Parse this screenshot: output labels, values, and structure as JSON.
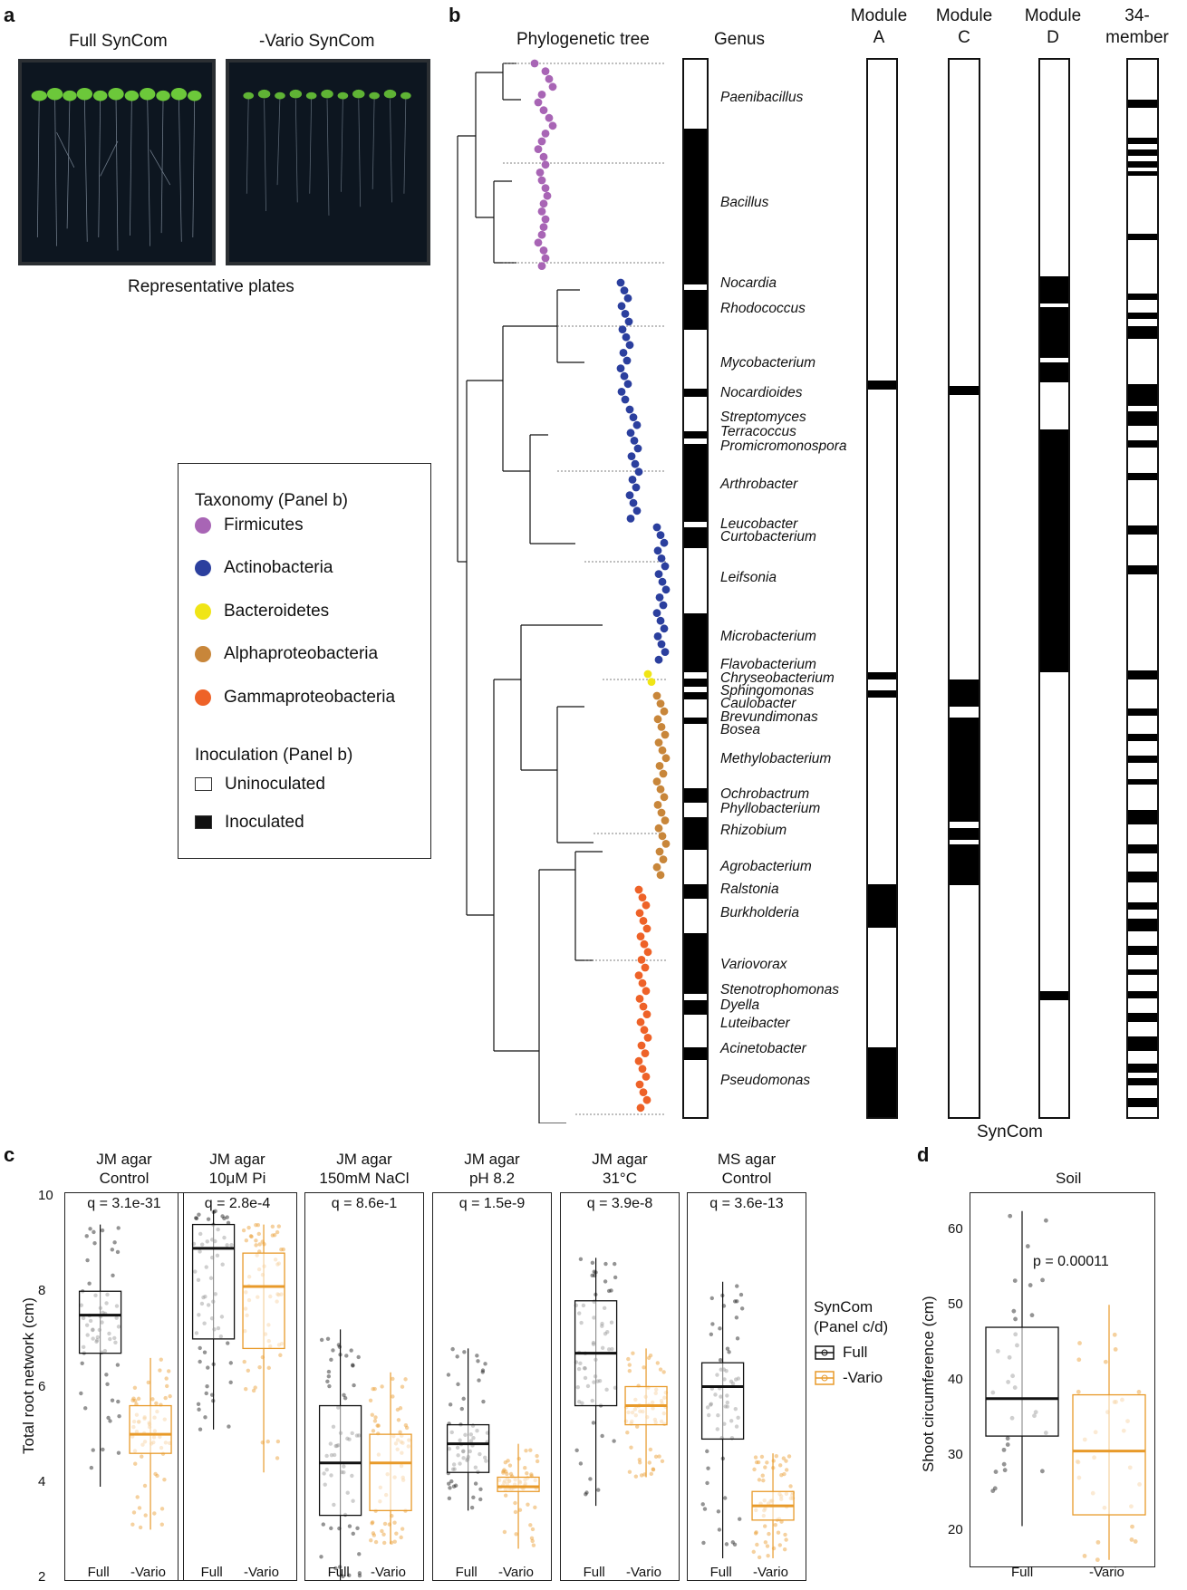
{
  "panel_a": {
    "letter": "a",
    "plate_titles": [
      "Full SynCom",
      "-Vario SynCom"
    ],
    "caption": "Representative plates"
  },
  "panel_b": {
    "letter": "b",
    "tree_title": "Phylogenetic tree",
    "genus_title": "Genus",
    "module_headers": [
      {
        "line1": "Module",
        "line2": "A"
      },
      {
        "line1": "Module",
        "line2": "C"
      },
      {
        "line1": "Module",
        "line2": "D"
      },
      {
        "line1": "34-",
        "line2": "member"
      }
    ],
    "bottom_label": "SynCom",
    "genera": [
      "Paenibacillus",
      "Bacillus",
      "Nocardia",
      "Rhodococcus",
      "Mycobacterium",
      "Nocardioides",
      "Streptomyces",
      "Terracoccus",
      "Promicromonospora",
      "Arthrobacter",
      "Leucobacter",
      "Curtobacterium",
      "Leifsonia",
      "Microbacterium",
      "Flavobacterium",
      "Chryseobacterium",
      "Sphingomonas",
      "Caulobacter",
      "Brevundimonas",
      "Bosea",
      "Methylobacterium",
      "Ochrobactrum",
      "Phyllobacterium",
      "Rhizobium",
      "Agrobacterium",
      "Ralstonia",
      "Burkholderia",
      "Variovorax",
      "Stenotrophomonas",
      "Dyella",
      "Luteibacter",
      "Acinetobacter",
      "Pseudomonas"
    ],
    "colors": {
      "Firmicutes": "#a865b5",
      "Actinobacteria": "#2b3f9e",
      "Bacteroidetes": "#f0e516",
      "Alphaproteobacteria": "#c8863a",
      "Gammaproteobacteria": "#ee6228"
    }
  },
  "legend": {
    "taxonomy_title": "Taxonomy  (Panel b)",
    "taxa": [
      "Firmicutes",
      "Actinobacteria",
      "Bacteroidetes",
      "Alphaproteobacteria",
      "Gammaproteobacteria"
    ],
    "inoculation_title": "Inoculation (Panel b)",
    "uninoculated": "Uninoculated",
    "inoculated": "Inoculated"
  },
  "panel_c": {
    "letter": "c",
    "ylabel": "Total root network (cm)",
    "yticks": [
      "10",
      "8",
      "6",
      "4",
      "2"
    ],
    "xlabels": [
      "Full",
      "-Vario"
    ],
    "legend_title_1": "SynCom",
    "legend_title_2": "(Panel c/d)",
    "legend_full": "Full",
    "legend_vario": "-Vario",
    "colors": {
      "full": "#111111",
      "vario": "#e89a2a"
    }
  },
  "panel_d": {
    "letter": "d",
    "title": "Soil",
    "ylabel": "Shoot circumference (cm)",
    "yticks": [
      "60",
      "50",
      "40",
      "30",
      "20"
    ],
    "pvalue": "p = 0.00011",
    "xlabels": [
      "Full",
      "-Vario"
    ]
  },
  "chart_data": [
    {
      "type": "box",
      "title": "JM agar Control",
      "annotation": "q = 3.1e-31",
      "categories": [
        "Full",
        "-Vario"
      ],
      "ylim": [
        2,
        10
      ],
      "ylabel": "Total root network (cm)",
      "series": [
        {
          "name": "Full",
          "q1": 6.7,
          "median": 7.5,
          "q3": 8.0,
          "min": 3.9,
          "max": 9.4
        },
        {
          "name": "-Vario",
          "q1": 4.6,
          "median": 5.0,
          "q3": 5.6,
          "min": 3.0,
          "max": 6.6
        }
      ]
    },
    {
      "type": "box",
      "title": "JM agar 10μM Pi",
      "annotation": "q = 2.8e-4",
      "categories": [
        "Full",
        "-Vario"
      ],
      "ylim": [
        2,
        10
      ],
      "series": [
        {
          "name": "Full",
          "q1": 7.0,
          "median": 8.9,
          "q3": 9.4,
          "min": 5.1,
          "max": 9.7
        },
        {
          "name": "-Vario",
          "q1": 6.8,
          "median": 8.1,
          "q3": 8.8,
          "min": 4.2,
          "max": 9.4
        }
      ]
    },
    {
      "type": "box",
      "title": "JM agar 150mM NaCl",
      "annotation": "q = 8.6e-1",
      "categories": [
        "Full",
        "-Vario"
      ],
      "ylim": [
        2,
        10
      ],
      "series": [
        {
          "name": "Full",
          "q1": 3.3,
          "median": 4.4,
          "q3": 5.6,
          "min": 1.9,
          "max": 7.2
        },
        {
          "name": "-Vario",
          "q1": 3.4,
          "median": 4.4,
          "q3": 5.0,
          "min": 2.7,
          "max": 6.3
        }
      ]
    },
    {
      "type": "box",
      "title": "JM agar pH 8.2",
      "annotation": "q = 1.5e-9",
      "categories": [
        "Full",
        "-Vario"
      ],
      "ylim": [
        2,
        10
      ],
      "series": [
        {
          "name": "Full",
          "q1": 4.2,
          "median": 4.8,
          "q3": 5.2,
          "min": 3.4,
          "max": 6.8
        },
        {
          "name": "-Vario",
          "q1": 3.8,
          "median": 3.9,
          "q3": 4.1,
          "min": 2.6,
          "max": 4.8
        }
      ]
    },
    {
      "type": "box",
      "title": "JM agar 31°C",
      "annotation": "q = 3.9e-8",
      "categories": [
        "Full",
        "-Vario"
      ],
      "ylim": [
        2,
        10
      ],
      "series": [
        {
          "name": "Full",
          "q1": 5.6,
          "median": 6.7,
          "q3": 7.8,
          "min": 3.5,
          "max": 8.7
        },
        {
          "name": "-Vario",
          "q1": 5.2,
          "median": 5.6,
          "q3": 6.0,
          "min": 4.1,
          "max": 6.8
        }
      ]
    },
    {
      "type": "box",
      "title": "MS agar Control",
      "annotation": "q = 3.6e-13",
      "categories": [
        "Full",
        "-Vario"
      ],
      "ylim": [
        2,
        10
      ],
      "series": [
        {
          "name": "Full",
          "q1": 4.9,
          "median": 6.0,
          "q3": 6.5,
          "min": 2.4,
          "max": 8.2
        },
        {
          "name": "-Vario",
          "q1": 3.2,
          "median": 3.5,
          "q3": 3.8,
          "min": 2.4,
          "max": 4.6
        }
      ]
    },
    {
      "type": "box",
      "title": "Soil",
      "annotation": "p = 0.00011",
      "categories": [
        "Full",
        "-Vario"
      ],
      "ylim": [
        15,
        65
      ],
      "ylabel": "Shoot circumference (cm)",
      "series": [
        {
          "name": "Full",
          "q1": 32.5,
          "median": 37.5,
          "q3": 47.0,
          "min": 20.5,
          "max": 62.5
        },
        {
          "name": "-Vario",
          "q1": 22.0,
          "median": 30.5,
          "q3": 38.0,
          "min": 16.0,
          "max": 50.0
        }
      ]
    }
  ]
}
